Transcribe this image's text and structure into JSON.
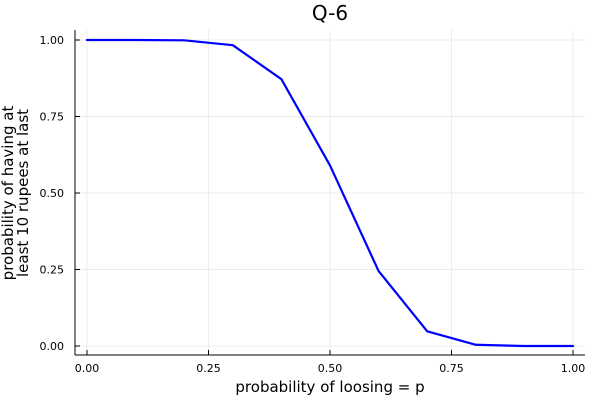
{
  "chart_data": {
    "type": "line",
    "title": "Q-6",
    "xlabel": "probability of loosing = p",
    "ylabel_lines": [
      "probability of having at",
      "least 10 rupees at last"
    ],
    "xlim": [
      0,
      1
    ],
    "ylim": [
      0,
      1
    ],
    "x_ticks": [
      0.0,
      0.25,
      0.5,
      0.75,
      1.0
    ],
    "x_tick_labels": [
      "0.00",
      "0.25",
      "0.50",
      "0.75",
      "1.00"
    ],
    "y_ticks": [
      0.0,
      0.25,
      0.5,
      0.75,
      1.0
    ],
    "y_tick_labels": [
      "0.00",
      "0.25",
      "0.50",
      "0.75",
      "1.00"
    ],
    "grid": true,
    "legend": false,
    "series": [
      {
        "color": "#0000ff",
        "x": [
          0.0,
          0.1,
          0.2,
          0.3,
          0.4,
          0.5,
          0.6,
          0.7,
          0.8,
          0.9,
          1.0
        ],
        "y": [
          1.0,
          1.0,
          0.999,
          0.983,
          0.872,
          0.59,
          0.245,
          0.048,
          0.004,
          0.0,
          0.0
        ]
      }
    ]
  },
  "colors": {
    "series": "#0000ff",
    "grid": "#ececec",
    "axis": "#000000",
    "background": "#ffffff"
  }
}
